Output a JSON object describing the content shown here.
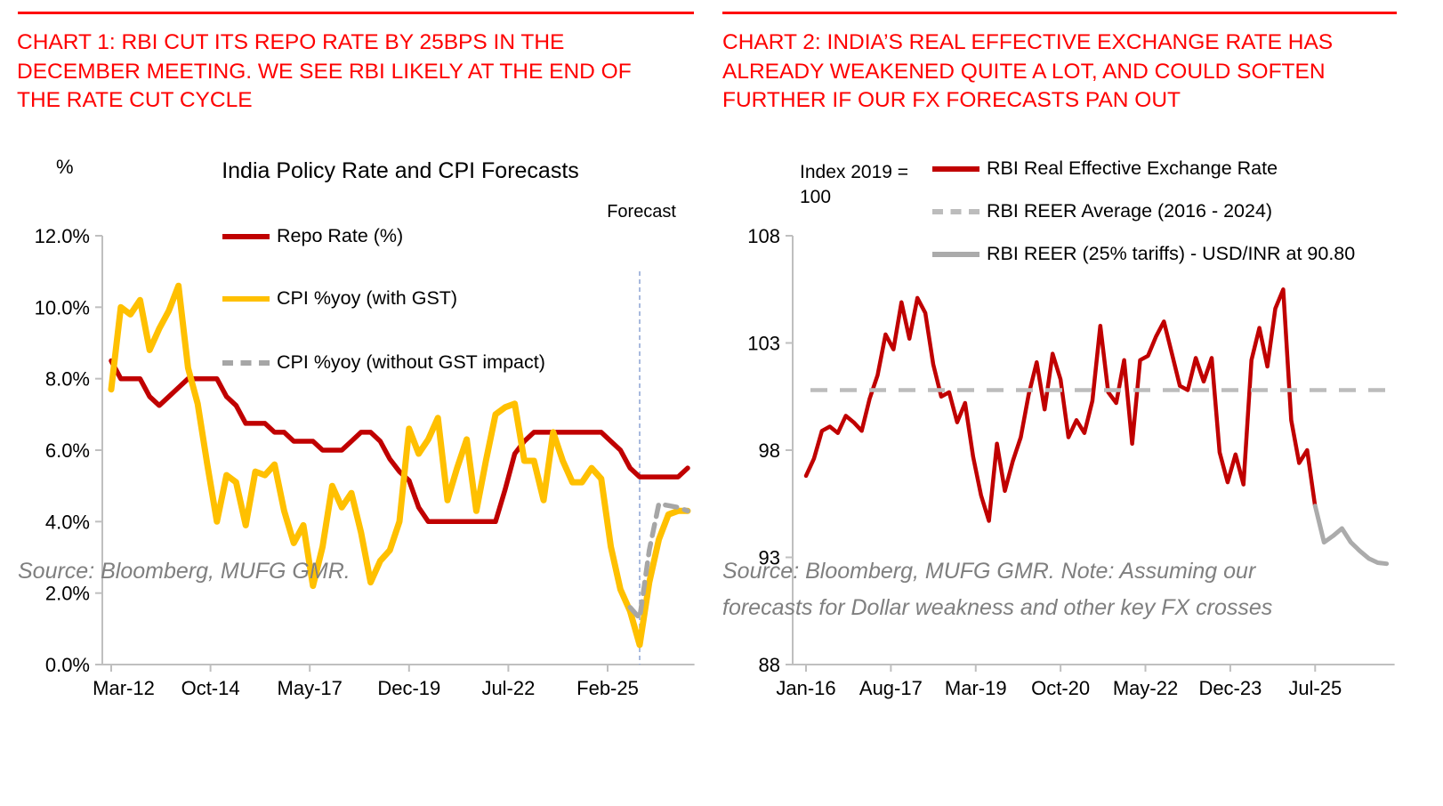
{
  "panels": {
    "left": {
      "heading": "CHART 1: RBI CUT ITS REPO RATE BY 25BPS IN THE DECEMBER MEETING. WE SEE RBI LIKELY AT THE END OF THE RATE CUT CYCLE",
      "source_note": "Source: Bloomberg, MUFG GMR."
    },
    "right": {
      "heading": "CHART 2: INDIA’S REAL EFFECTIVE EXCHANGE RATE HAS ALREADY WEAKENED QUITE A LOT, AND COULD SOFTEN FURTHER IF OUR FX FORECASTS PAN OUT",
      "source_note": "Source: Bloomberg, MUFG GMR.  Note: Assuming our forecasts for Dollar weakness and other key FX crosses"
    }
  },
  "colors": {
    "heading_red": "#fe0000",
    "dark_red_line": "#c00000",
    "gold_line": "#ffc000",
    "gray_dashed": "#a6a6a6",
    "gray_forecast": "#ababab",
    "forecast_divider": "#92a8d6",
    "axis_line": "#bfbfbf",
    "source_gray": "#7f7f7f"
  },
  "chart_data": [
    {
      "type": "line",
      "title": "India Policy Rate and CPI Forecasts",
      "unit_label": "%",
      "forecast_label": "Forecast",
      "x_axis": {
        "unit": "months since Mar-2012",
        "range": [
          0,
          181
        ],
        "tick_months": [
          0,
          31,
          62,
          93,
          124,
          155
        ],
        "tick_labels": [
          "Mar-12",
          "Oct-14",
          "May-17",
          "Dec-19",
          "Jul-22",
          "Feb-25"
        ]
      },
      "y_axis": {
        "range": [
          0,
          12
        ],
        "tick_values": [
          0,
          2,
          4,
          6,
          8,
          10,
          12
        ],
        "tick_labels": [
          "0.0%",
          "2.0%",
          "4.0%",
          "6.0%",
          "8.0%",
          "10.0%",
          "12.0%"
        ]
      },
      "forecast_divider_month": 165,
      "grid": false,
      "legend_position": "inside-top-left",
      "series": [
        {
          "name": "Repo Rate (%)",
          "color": "#c00000",
          "style": "solid",
          "width": 5.5,
          "start_month": 0,
          "step_months": 3,
          "values": [
            8.5,
            8.0,
            8.0,
            8.0,
            7.5,
            7.25,
            7.5,
            7.75,
            8.0,
            8.0,
            8.0,
            8.0,
            7.5,
            7.25,
            6.75,
            6.75,
            6.75,
            6.5,
            6.5,
            6.25,
            6.25,
            6.25,
            6.0,
            6.0,
            6.0,
            6.25,
            6.5,
            6.5,
            6.25,
            5.75,
            5.4,
            5.15,
            4.4,
            4.0,
            4.0,
            4.0,
            4.0,
            4.0,
            4.0,
            4.0,
            4.0,
            4.9,
            5.9,
            6.25,
            6.5,
            6.5,
            6.5,
            6.5,
            6.5,
            6.5,
            6.5,
            6.5,
            6.25,
            6.0,
            5.5,
            5.25,
            5.25,
            5.25,
            5.25,
            5.25,
            5.5
          ]
        },
        {
          "name": "CPI %yoy (with GST)",
          "color": "#ffc000",
          "style": "solid",
          "width": 7,
          "start_month": 0,
          "step_months": 3,
          "values": [
            7.7,
            10.0,
            9.8,
            10.2,
            8.8,
            9.4,
            9.9,
            10.6,
            8.3,
            7.3,
            5.6,
            4.0,
            5.3,
            5.1,
            3.9,
            5.4,
            5.3,
            5.6,
            4.3,
            3.4,
            3.9,
            2.2,
            3.3,
            5.0,
            4.4,
            4.8,
            3.7,
            2.3,
            2.9,
            3.2,
            4.0,
            6.6,
            5.9,
            6.3,
            6.9,
            4.6,
            5.5,
            6.3,
            4.3,
            5.7,
            7.0,
            7.2,
            7.3,
            5.7,
            5.7,
            4.6,
            6.5,
            5.7,
            5.1,
            5.1,
            5.5,
            5.2,
            3.3,
            2.1,
            1.5,
            0.55,
            2.3,
            3.5,
            4.2,
            4.3,
            4.3
          ]
        },
        {
          "name": "CPI %yoy (without GST impact)",
          "color": "#a6a6a6",
          "style": "dashed",
          "width": 5.5,
          "start_month": 162,
          "step_months": 3,
          "values": [
            1.6,
            1.3,
            3.2,
            4.5,
            4.45,
            4.4,
            4.3
          ]
        }
      ]
    },
    {
      "type": "line",
      "title": "",
      "index_label": "Index 2019 = 100",
      "x_axis": {
        "unit": "months since Jan-2016",
        "range": [
          0,
          131
        ],
        "tick_months": [
          0,
          19,
          38,
          57,
          76,
          95,
          114
        ],
        "tick_labels": [
          "Jan-16",
          "Aug-17",
          "Mar-19",
          "Oct-20",
          "May-22",
          "Dec-23",
          "Jul-25"
        ]
      },
      "y_axis": {
        "range": [
          88,
          108
        ],
        "tick_values": [
          88,
          93,
          98,
          103,
          108
        ],
        "tick_labels": [
          "88",
          "93",
          "98",
          "103",
          "108"
        ]
      },
      "grid": false,
      "legend_position": "top-right",
      "series": [
        {
          "name": "RBI Real Effective Exchange Rate",
          "color": "#c00000",
          "style": "solid",
          "width": 4.5,
          "start_month": 0,
          "step_months": 1.781,
          "values": [
            96.8,
            97.6,
            98.9,
            99.1,
            98.8,
            99.6,
            99.3,
            98.9,
            100.4,
            101.5,
            103.4,
            102.7,
            104.9,
            103.2,
            105.1,
            104.4,
            102.0,
            100.5,
            100.7,
            99.3,
            100.2,
            97.7,
            95.9,
            94.7,
            98.3,
            96.1,
            97.5,
            98.6,
            100.6,
            102.1,
            99.9,
            102.5,
            101.3,
            98.6,
            99.4,
            98.8,
            100.3,
            103.8,
            100.7,
            100.2,
            102.2,
            98.3,
            102.2,
            102.4,
            103.3,
            104.0,
            102.5,
            101.0,
            100.8,
            102.3,
            101.2,
            102.3,
            97.9,
            96.5,
            97.8,
            96.4,
            102.2,
            103.7,
            101.9,
            104.6,
            105.5,
            99.4,
            97.4,
            98.0,
            95.4
          ]
        },
        {
          "name": "RBI REER Average (2016 - 2024)",
          "color": "#bcbcbc",
          "style": "dashed",
          "width": 4.5,
          "hline": 100.8
        },
        {
          "name": "RBI REER (25% tariffs) - USD/INR at 90.80",
          "color": "#ababab",
          "style": "solid",
          "width": 5,
          "start_month": 114,
          "step_months": 2.0,
          "values": [
            95.4,
            93.7,
            94.0,
            94.35,
            93.7,
            93.3,
            92.95,
            92.75,
            92.7
          ]
        }
      ]
    }
  ]
}
